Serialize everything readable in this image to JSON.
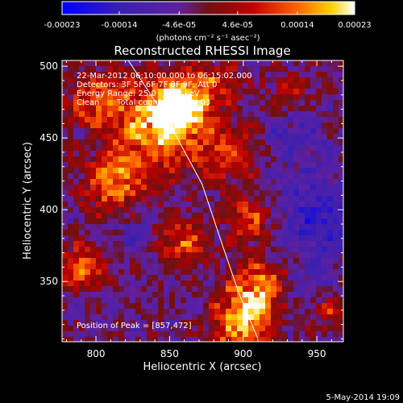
{
  "chart_data": {
    "type": "heatmap",
    "title": "Reconstructed RHESSI Image",
    "xlabel": "Heliocentric X (arcsec)",
    "ylabel": "Heliocentric Y (arcsec)",
    "xlim": [
      777,
      968
    ],
    "ylim": [
      308,
      504
    ],
    "xticks": [
      800,
      850,
      900,
      950
    ],
    "yticks": [
      350,
      400,
      450,
      500
    ],
    "colorbar": {
      "range": [
        -0.00023,
        0.00023
      ],
      "ticks": [
        {
          "value": -0.00023,
          "label": "-0.00023"
        },
        {
          "value": -0.00014,
          "label": "-0.00014"
        },
        {
          "value": -4.6e-05,
          "label": "-4.6e-05"
        },
        {
          "value": 4.6e-05,
          "label": "4.6e-05"
        },
        {
          "value": 0.00014,
          "label": "0.00014"
        },
        {
          "value": 0.00023,
          "label": "0.00023"
        }
      ],
      "unit_label": "(photons cm⁻² s⁻¹ asec⁻²)"
    },
    "annotations": {
      "time_range": "22-Mar-2012 06:10:00.000 to 06:15:02.000",
      "detectors": "Detectors: 3F 5F 6F 7F 8F 9F, Att 0",
      "energy_range": "Energy Range: 25.0 - 50.0 keV",
      "algorithm": "Clean",
      "total_counts": "Total counts: 7.70E+03",
      "peak_position": "Position of Peak = [857,472]"
    },
    "limb_curve": [
      [
        822,
        504
      ],
      [
        850,
        460
      ],
      [
        872,
        418
      ],
      [
        886,
        375
      ],
      [
        897,
        342
      ],
      [
        910,
        310
      ]
    ],
    "hot_spots": [
      {
        "x": 857,
        "y": 472,
        "intensity": 1.0,
        "radius": 12
      },
      {
        "x": 842,
        "y": 458,
        "intensity": 0.85,
        "radius": 22
      },
      {
        "x": 812,
        "y": 418,
        "intensity": 0.75,
        "radius": 14
      },
      {
        "x": 800,
        "y": 478,
        "intensity": 0.55,
        "radius": 14
      },
      {
        "x": 790,
        "y": 360,
        "intensity": 0.6,
        "radius": 12
      },
      {
        "x": 858,
        "y": 378,
        "intensity": 0.55,
        "radius": 12
      },
      {
        "x": 905,
        "y": 395,
        "intensity": 0.6,
        "radius": 12
      },
      {
        "x": 910,
        "y": 345,
        "intensity": 0.8,
        "radius": 14
      },
      {
        "x": 898,
        "y": 318,
        "intensity": 0.85,
        "radius": 14
      },
      {
        "x": 890,
        "y": 440,
        "intensity": 0.5,
        "radius": 14
      },
      {
        "x": 955,
        "y": 330,
        "intensity": 0.45,
        "radius": 10
      },
      {
        "x": 880,
        "y": 490,
        "intensity": 0.4,
        "radius": 12
      },
      {
        "x": 930,
        "y": 480,
        "intensity": 0.35,
        "radius": 12
      }
    ],
    "cold_spots": [
      {
        "x": 950,
        "y": 395,
        "intensity": 0.7,
        "radius": 22
      },
      {
        "x": 935,
        "y": 455,
        "intensity": 0.5,
        "radius": 14
      },
      {
        "x": 945,
        "y": 340,
        "intensity": 0.4,
        "radius": 12
      },
      {
        "x": 825,
        "y": 385,
        "intensity": 0.3,
        "radius": 12
      }
    ]
  },
  "footer": {
    "date": "5-May-2014 19:09"
  }
}
